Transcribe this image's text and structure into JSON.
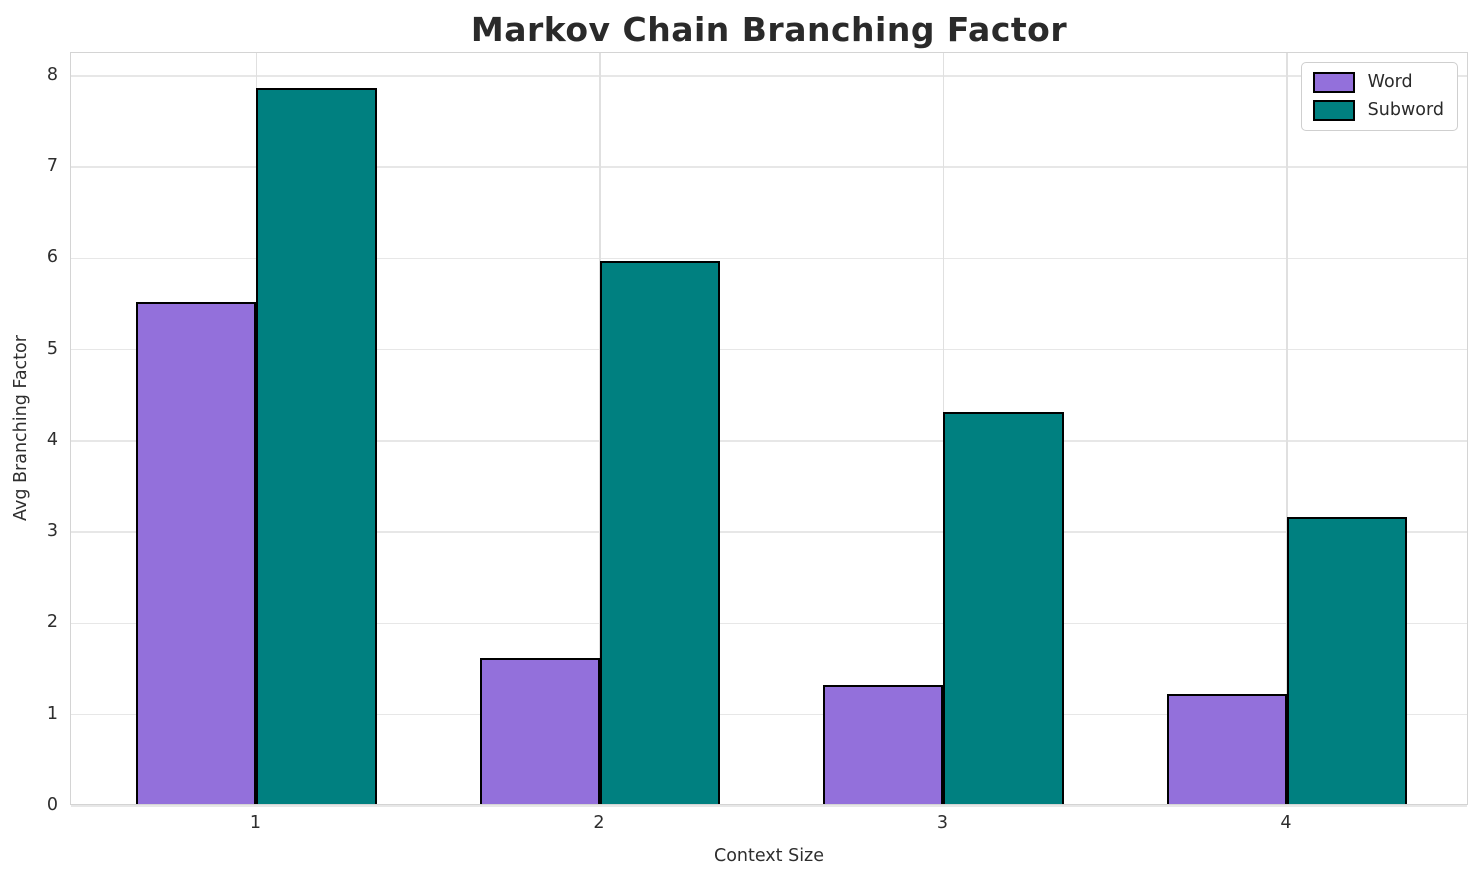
{
  "chart_data": {
    "type": "bar",
    "title": "Markov Chain Branching Factor",
    "xlabel": "Context Size",
    "ylabel": "Avg Branching Factor",
    "categories": [
      "1",
      "2",
      "3",
      "4"
    ],
    "series": [
      {
        "name": "Word",
        "color": "#9370DB",
        "values": [
          5.5,
          1.6,
          1.3,
          1.2
        ]
      },
      {
        "name": "Subword",
        "color": "#008080",
        "values": [
          7.85,
          5.95,
          4.3,
          3.15
        ]
      }
    ],
    "yticks": [
      0,
      1,
      2,
      3,
      4,
      5,
      6,
      7,
      8
    ],
    "ylim": [
      0,
      8.25
    ],
    "xlim": [
      0.46,
      4.53
    ],
    "bar_width": 0.35,
    "bar_edge_color": "#000000",
    "grid": true,
    "legend_position": "upper right",
    "background_color": "#ffffff",
    "grid_color": "#e7e7e7",
    "spine_color": "#d4d4d4"
  }
}
